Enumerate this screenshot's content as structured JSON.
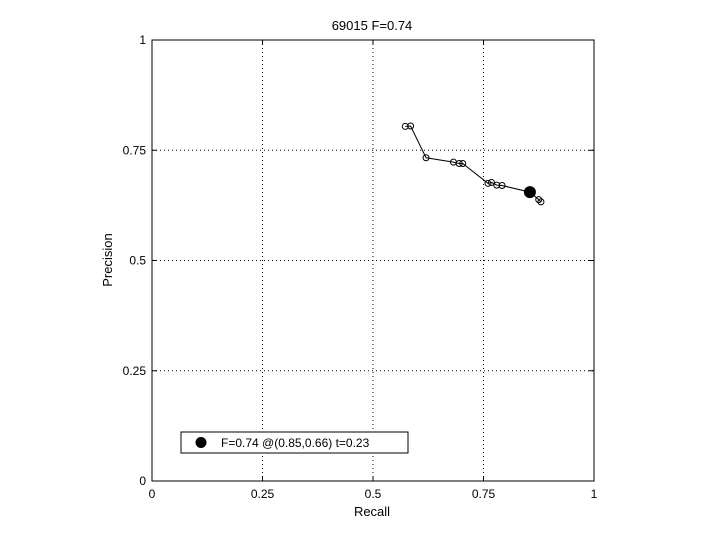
{
  "chart_data": {
    "type": "line",
    "title": "69015 F=0.74",
    "xlabel": "Recall",
    "ylabel": "Precision",
    "xlim": [
      0,
      1
    ],
    "ylim": [
      0,
      1
    ],
    "grid": true,
    "grid_style": "dotted",
    "x_ticks": [
      0,
      0.25,
      0.5,
      0.75,
      1
    ],
    "x_tick_labels": [
      "0",
      "0.25",
      "0.5",
      "0.75",
      "1"
    ],
    "y_ticks": [
      0,
      0.25,
      0.5,
      0.75,
      1
    ],
    "y_tick_labels": [
      "0",
      "0.25",
      "0.5",
      "0.75",
      "1"
    ],
    "series": [
      {
        "marker": "open-circle",
        "color": "#000000",
        "x": [
          0.573,
          0.585,
          0.62,
          0.682,
          0.695,
          0.703,
          0.76,
          0.768,
          0.78,
          0.792,
          0.855,
          0.875,
          0.88
        ],
        "y": [
          0.804,
          0.805,
          0.733,
          0.723,
          0.72,
          0.72,
          0.675,
          0.677,
          0.671,
          0.67,
          0.655,
          0.638,
          0.633
        ]
      }
    ],
    "highlight_point": {
      "x": 0.855,
      "y": 0.655,
      "marker": "filled-circle",
      "color": "#000000"
    },
    "legend": {
      "placement": "bottom-left",
      "entries": [
        {
          "label": "F=0.74 @(0.85,0.66) t=0.23",
          "marker": "filled-circle"
        }
      ]
    }
  }
}
